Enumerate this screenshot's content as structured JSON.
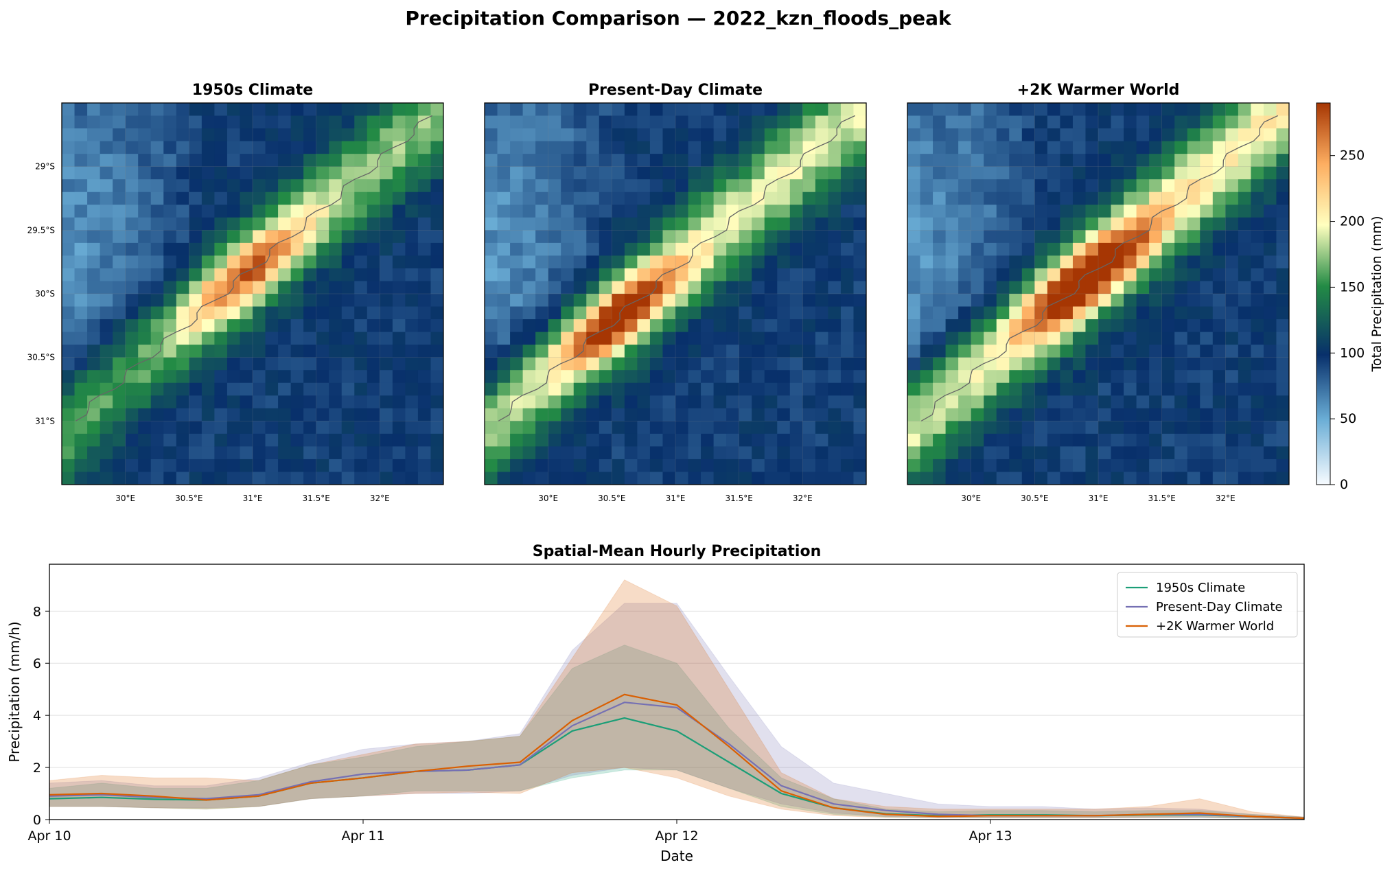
{
  "suptitle": "Precipitation Comparison — 2022_kzn_floods_peak",
  "maps": [
    {
      "title": "1950s Climate",
      "peak": [
        31.2,
        -30.05
      ],
      "scale": 0.72
    },
    {
      "title": "Present-Day Climate",
      "peak": [
        30.85,
        -30.5
      ],
      "scale": 0.88
    },
    {
      "title": "+2K Warmer World",
      "peak": [
        31.1,
        -30.05
      ],
      "scale": 1.0
    }
  ],
  "map_axes": {
    "x_ticks": [
      "30°E",
      "30.5°E",
      "31°E",
      "31.5°E",
      "32°E"
    ],
    "x_tick_values": [
      30.0,
      30.5,
      31.0,
      31.5,
      32.0
    ],
    "y_ticks": [
      "29°S",
      "29.5°S",
      "30°S",
      "30.5°S",
      "31°S"
    ],
    "y_tick_values": [
      -29.0,
      -29.5,
      -30.0,
      -30.5,
      -31.0
    ],
    "lon_range": [
      29.5,
      32.5
    ],
    "lat_range": [
      -31.5,
      -28.5
    ]
  },
  "colorbar": {
    "label": "Total Precipitation (mm)",
    "ticks": [
      "0",
      "50",
      "100",
      "150",
      "200",
      "250"
    ],
    "tick_values": [
      0,
      50,
      100,
      150,
      200,
      250
    ],
    "range": [
      0,
      290
    ]
  },
  "chart_data": {
    "type": "line",
    "title": "Spatial-Mean Hourly Precipitation",
    "xlabel": "Date",
    "ylabel": "Precipitation (mm/h)",
    "x_ticks": [
      "Apr 10",
      "Apr 11",
      "Apr 12",
      "Apr 13"
    ],
    "x_range_hours": [
      0,
      96
    ],
    "ylim": [
      0,
      9.8
    ],
    "y_ticks": [
      0,
      2,
      4,
      6,
      8
    ],
    "grid": "horizontal",
    "legend_position": "top-right",
    "hours": [
      0,
      4,
      8,
      12,
      16,
      20,
      24,
      28,
      32,
      36,
      40,
      44,
      48,
      52,
      56,
      60,
      64,
      68,
      72,
      76,
      80,
      84,
      88,
      92,
      96
    ],
    "series": [
      {
        "name": "1950s Climate",
        "color": "#1b9e77",
        "values": [
          0.8,
          0.85,
          0.78,
          0.75,
          0.9,
          1.4,
          1.6,
          1.85,
          1.9,
          2.1,
          3.4,
          3.9,
          3.4,
          2.2,
          1.0,
          0.45,
          0.22,
          0.15,
          0.18,
          0.18,
          0.15,
          0.18,
          0.18,
          0.12,
          0.05
        ],
        "lower": [
          0.5,
          0.5,
          0.45,
          0.4,
          0.5,
          0.8,
          0.9,
          1.1,
          1.1,
          1.1,
          1.6,
          1.9,
          1.9,
          1.2,
          0.5,
          0.2,
          0.1,
          0.08,
          0.08,
          0.08,
          0.08,
          0.08,
          0.08,
          0.05,
          0.02
        ],
        "upper": [
          1.2,
          1.4,
          1.2,
          1.2,
          1.5,
          2.1,
          2.4,
          2.8,
          3.0,
          3.2,
          5.8,
          6.7,
          6.0,
          3.5,
          1.6,
          0.8,
          0.4,
          0.3,
          0.35,
          0.35,
          0.3,
          0.35,
          0.35,
          0.2,
          0.1
        ]
      },
      {
        "name": "Present-Day Climate",
        "color": "#7570b3",
        "values": [
          0.9,
          0.95,
          0.85,
          0.8,
          0.95,
          1.45,
          1.75,
          1.85,
          1.9,
          2.1,
          3.6,
          4.5,
          4.3,
          2.9,
          1.3,
          0.6,
          0.35,
          0.2,
          0.15,
          0.15,
          0.15,
          0.2,
          0.2,
          0.12,
          0.05
        ],
        "lower": [
          0.5,
          0.5,
          0.45,
          0.45,
          0.5,
          0.8,
          0.9,
          1.0,
          1.0,
          1.1,
          1.7,
          2.0,
          1.9,
          1.2,
          0.6,
          0.25,
          0.12,
          0.08,
          0.08,
          0.08,
          0.08,
          0.08,
          0.08,
          0.05,
          0.02
        ],
        "upper": [
          1.4,
          1.5,
          1.3,
          1.3,
          1.6,
          2.2,
          2.7,
          2.9,
          3.0,
          3.3,
          6.5,
          8.3,
          8.3,
          5.5,
          2.8,
          1.4,
          1.0,
          0.6,
          0.5,
          0.5,
          0.4,
          0.45,
          0.4,
          0.2,
          0.1
        ]
      },
      {
        "name": "+2K Warmer World",
        "color": "#d95f02",
        "values": [
          0.95,
          1.0,
          0.9,
          0.75,
          0.9,
          1.4,
          1.6,
          1.85,
          2.05,
          2.2,
          3.8,
          4.8,
          4.4,
          2.8,
          1.1,
          0.45,
          0.2,
          0.12,
          0.15,
          0.15,
          0.15,
          0.2,
          0.25,
          0.12,
          0.05
        ],
        "lower": [
          0.5,
          0.5,
          0.45,
          0.4,
          0.5,
          0.8,
          0.9,
          1.0,
          1.05,
          1.0,
          1.8,
          2.0,
          1.6,
          0.9,
          0.4,
          0.15,
          0.08,
          0.06,
          0.06,
          0.06,
          0.06,
          0.08,
          0.1,
          0.05,
          0.02
        ],
        "upper": [
          1.5,
          1.7,
          1.6,
          1.6,
          1.5,
          2.1,
          2.5,
          2.9,
          3.0,
          3.2,
          6.2,
          9.2,
          8.2,
          5.0,
          1.8,
          0.8,
          0.5,
          0.4,
          0.4,
          0.4,
          0.4,
          0.5,
          0.8,
          0.3,
          0.1
        ]
      }
    ]
  }
}
